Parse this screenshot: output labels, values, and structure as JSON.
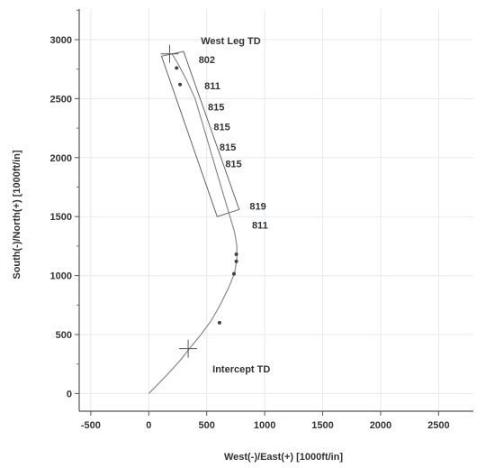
{
  "chart_data": {
    "type": "line",
    "title": "",
    "xlabel": "West(-)/East(+) [1000ft/in]",
    "ylabel": "South(-)/North(+) [1000ft/in]",
    "xlim": [
      -600,
      2800
    ],
    "ylim": [
      -150,
      3260
    ],
    "x_ticks": [
      -500,
      0,
      500,
      1000,
      1500,
      2000,
      2500
    ],
    "y_ticks": [
      0,
      500,
      1000,
      1500,
      2000,
      2500,
      3000
    ],
    "grid": true,
    "series": [
      {
        "values_xy": [
          [
            0,
            0
          ],
          [
            150,
            150
          ],
          [
            270,
            280
          ],
          [
            350,
            380
          ],
          [
            450,
            500
          ],
          [
            540,
            620
          ],
          [
            620,
            760
          ],
          [
            690,
            900
          ],
          [
            740,
            1020
          ],
          [
            760,
            1140
          ],
          [
            760,
            1250
          ],
          [
            740,
            1370
          ],
          [
            700,
            1500
          ],
          [
            640,
            1700
          ],
          [
            580,
            1900
          ],
          [
            520,
            2100
          ],
          [
            460,
            2300
          ],
          [
            400,
            2500
          ],
          [
            330,
            2650
          ],
          [
            250,
            2800
          ],
          [
            200,
            2880
          ]
        ]
      }
    ],
    "markers": [
      [
        610,
        600
      ],
      [
        735,
        1015
      ],
      [
        755,
        1120
      ],
      [
        755,
        1180
      ],
      [
        270,
        2620
      ],
      [
        240,
        2760
      ]
    ],
    "annotations": [
      {
        "text": "West Leg TD",
        "x": 450,
        "y": 2960
      },
      {
        "text": "Intercept TD",
        "x": 550,
        "y": 180
      },
      {
        "text": "802",
        "x": 430,
        "y": 2800
      },
      {
        "text": "811",
        "x": 480,
        "y": 2580
      },
      {
        "text": "815",
        "x": 510,
        "y": 2400
      },
      {
        "text": "815",
        "x": 560,
        "y": 2230
      },
      {
        "text": "815",
        "x": 610,
        "y": 2060
      },
      {
        "text": "815",
        "x": 660,
        "y": 1920
      },
      {
        "text": "819",
        "x": 870,
        "y": 1560
      },
      {
        "text": "811",
        "x": 890,
        "y": 1400
      }
    ],
    "box_corners": [
      [
        110,
        2860
      ],
      [
        300,
        2900
      ],
      [
        780,
        1560
      ],
      [
        590,
        1500
      ]
    ],
    "crosshairs": [
      [
        180,
        2880
      ],
      [
        340,
        380
      ]
    ]
  }
}
